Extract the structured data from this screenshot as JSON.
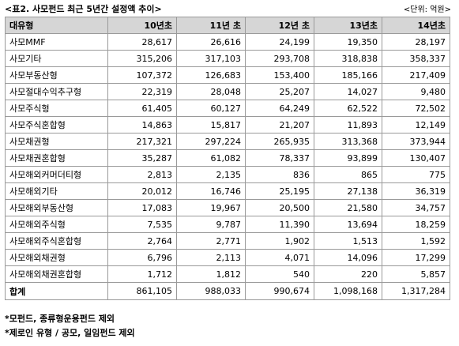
{
  "caption": {
    "title": "<표2. 사모펀드 최근 5년간 설정액 추이>",
    "unit": "<단위: 억원>"
  },
  "table": {
    "headers": [
      "대유형",
      "10년초",
      "11년 초",
      "12년 초",
      "13년초",
      "14년초"
    ],
    "rows": [
      [
        "사모MMF",
        "28,617",
        "26,616",
        "24,199",
        "19,350",
        "28,197"
      ],
      [
        "사모기타",
        "315,206",
        "317,103",
        "293,708",
        "318,838",
        "358,337"
      ],
      [
        "사모부동산형",
        "107,372",
        "126,683",
        "153,400",
        "185,166",
        "217,409"
      ],
      [
        "사모절대수익추구형",
        "22,319",
        "28,048",
        "25,207",
        "14,027",
        "9,480"
      ],
      [
        "사모주식형",
        "61,405",
        "60,127",
        "64,249",
        "62,522",
        "72,502"
      ],
      [
        "사모주식혼합형",
        "14,863",
        "15,817",
        "21,207",
        "11,893",
        "12,149"
      ],
      [
        "사모채권형",
        "217,321",
        "297,224",
        "265,935",
        "313,368",
        "373,944"
      ],
      [
        "사모채권혼합형",
        "35,287",
        "61,082",
        "78,337",
        "93,899",
        "130,407"
      ],
      [
        "사모해외커머더티형",
        "2,813",
        "2,135",
        "836",
        "865",
        "775"
      ],
      [
        "사모해외기타",
        "20,012",
        "16,746",
        "25,195",
        "27,138",
        "36,319"
      ],
      [
        "사모해외부동산형",
        "17,083",
        "19,967",
        "20,500",
        "21,580",
        "34,757"
      ],
      [
        "사모해외주식형",
        "7,535",
        "9,787",
        "11,390",
        "13,694",
        "18,259"
      ],
      [
        "사모해외주식혼합형",
        "2,764",
        "2,771",
        "1,902",
        "1,513",
        "1,592"
      ],
      [
        "사모해외채권형",
        "6,796",
        "2,113",
        "4,071",
        "14,096",
        "17,299"
      ],
      [
        "사모해외채권혼합형",
        "1,712",
        "1,812",
        "540",
        "220",
        "5,857"
      ]
    ],
    "total": [
      "합계",
      "861,105",
      "988,033",
      "990,674",
      "1,098,168",
      "1,317,284"
    ]
  },
  "notes": [
    "*모펀드, 종류형운용펀드 제외",
    "*제로인 유형 / 공모, 일임펀드 제외"
  ]
}
